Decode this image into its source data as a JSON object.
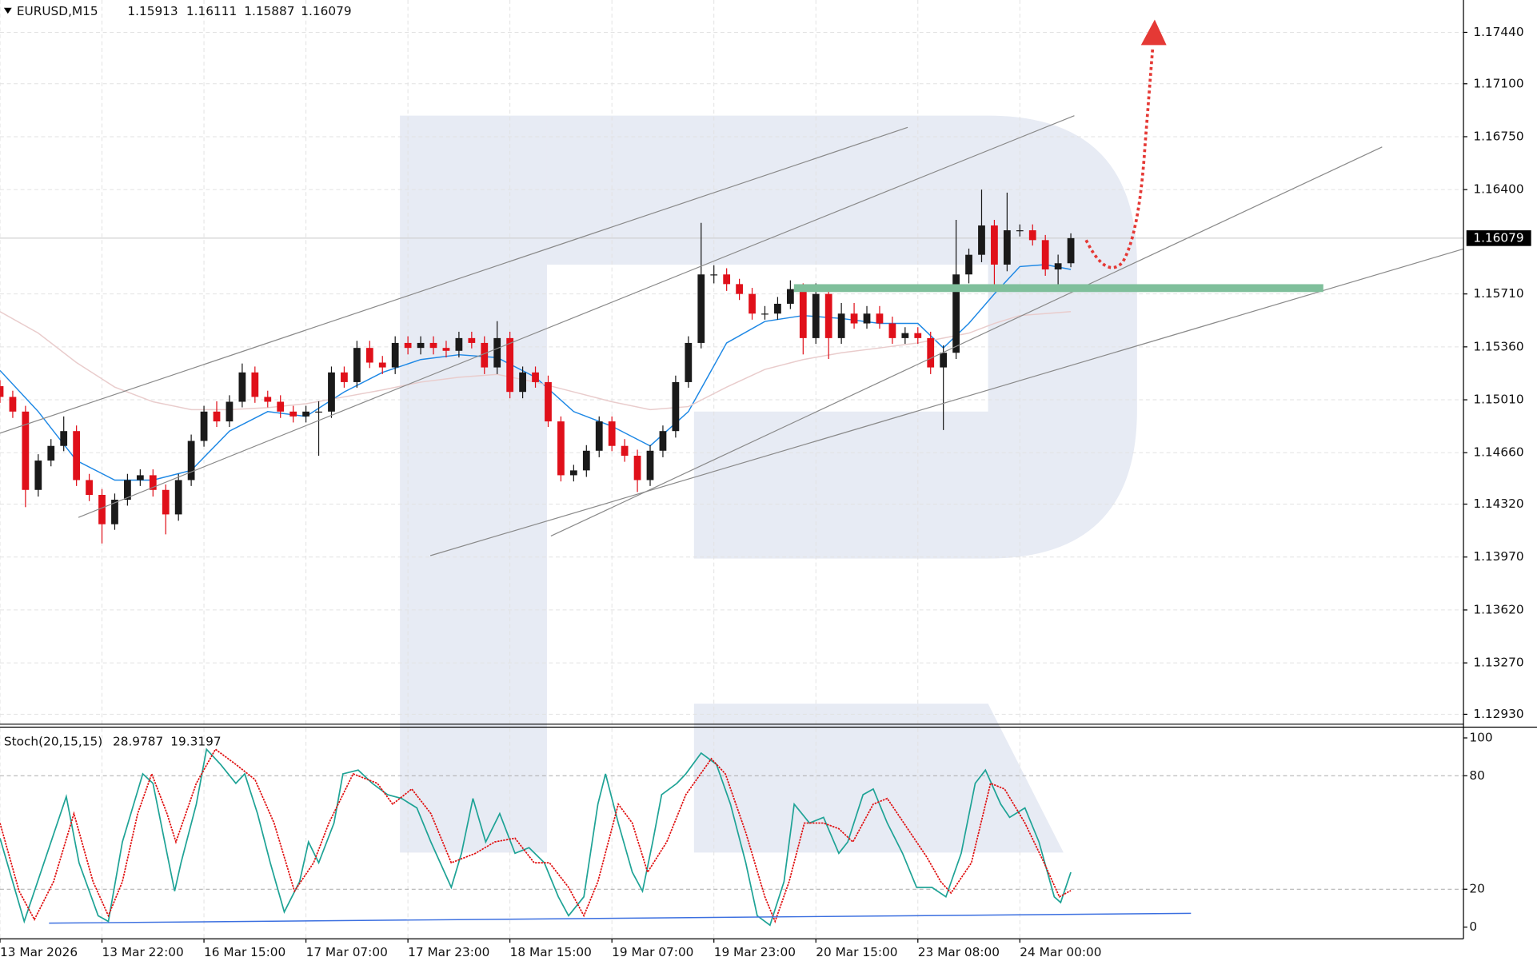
{
  "chart_data": [
    {
      "type": "candlestick",
      "symbol": "EURUSD,M15",
      "xlim": [
        0,
        114.8
      ],
      "ylim": [
        1.12858,
        1.17654
      ],
      "grid": true,
      "up_color": "#1a1a1a",
      "down_color": "#e0101a",
      "xticks": [
        {
          "value": 0,
          "label": "13 Mar 2026"
        },
        {
          "value": 8,
          "label": "13 Mar 22:00"
        },
        {
          "value": 16,
          "label": "16 Mar 15:00"
        },
        {
          "value": 24,
          "label": "17 Mar 07:00"
        },
        {
          "value": 32,
          "label": "17 Mar 23:00"
        },
        {
          "value": 40,
          "label": "18 Mar 15:00"
        },
        {
          "value": 48,
          "label": "19 Mar 07:00"
        },
        {
          "value": 56,
          "label": "19 Mar 23:00"
        },
        {
          "value": 64,
          "label": "20 Mar 15:00"
        },
        {
          "value": 72,
          "label": "23 Mar 08:00"
        },
        {
          "value": 80,
          "label": "24 Mar 00:00"
        }
      ],
      "yticks": [
        {
          "value": 1.1744,
          "label": "1.17440"
        },
        {
          "value": 1.171,
          "label": "1.17100"
        },
        {
          "value": 1.1675,
          "label": "1.16750"
        },
        {
          "value": 1.164,
          "label": "1.16400"
        },
        {
          "value": 1.1571,
          "label": "1.15710"
        },
        {
          "value": 1.1536,
          "label": "1.15360"
        },
        {
          "value": 1.1501,
          "label": "1.15010"
        },
        {
          "value": 1.1466,
          "label": "1.14660"
        },
        {
          "value": 1.1432,
          "label": "1.14320"
        },
        {
          "value": 1.1397,
          "label": "1.13970"
        },
        {
          "value": 1.1362,
          "label": "1.13620"
        },
        {
          "value": 1.1327,
          "label": "1.13270"
        },
        {
          "value": 1.1293,
          "label": "1.12930"
        }
      ],
      "open": [
        1.151,
        1.15029,
        1.14932,
        1.14414,
        1.14608,
        1.14705,
        1.14803,
        1.14479,
        1.14381,
        1.14187,
        1.14349,
        1.14479,
        1.14511,
        1.14414,
        1.14252,
        1.14479,
        1.14738,
        1.14932,
        1.14867,
        1.14997,
        1.15191,
        1.15029,
        1.14997,
        1.14932,
        1.149,
        1.14932,
        1.14932,
        1.15191,
        1.15127,
        1.15353,
        1.15256,
        1.15224,
        1.15386,
        1.15353,
        1.15386,
        1.15353,
        1.15334,
        1.15418,
        1.15386,
        1.15224,
        1.15418,
        1.15062,
        1.15191,
        1.15127,
        1.14867,
        1.14511,
        1.14543,
        1.14673,
        1.14867,
        1.14705,
        1.1464,
        1.14479,
        1.14673,
        1.14803,
        1.15127,
        1.15386,
        1.15839,
        1.15839,
        1.15775,
        1.1571,
        1.1558,
        1.1558,
        1.15645,
        1.15742,
        1.15418,
        1.1571,
        1.15418,
        1.1558,
        1.15515,
        1.1558,
        1.15515,
        1.15418,
        1.15451,
        1.15418,
        1.15224,
        1.15321,
        1.15839,
        1.15969,
        1.16163,
        1.15904,
        1.16131,
        1.16131,
        1.16066,
        1.15872,
        1.15913
      ],
      "high": [
        1.1514,
        1.1507,
        1.1497,
        1.1465,
        1.1475,
        1.149,
        1.1484,
        1.1452,
        1.1442,
        1.1439,
        1.1452,
        1.1455,
        1.1455,
        1.1445,
        1.1452,
        1.1478,
        1.1497,
        1.15,
        1.1504,
        1.1525,
        1.1523,
        1.1507,
        1.1504,
        1.1497,
        1.1497,
        1.15,
        1.1523,
        1.1523,
        1.154,
        1.154,
        1.153,
        1.1543,
        1.1543,
        1.1543,
        1.1543,
        1.154,
        1.1546,
        1.1546,
        1.1543,
        1.1553,
        1.1546,
        1.1523,
        1.1523,
        1.1517,
        1.149,
        1.1458,
        1.1471,
        1.149,
        1.149,
        1.1475,
        1.1468,
        1.1471,
        1.1484,
        1.1517,
        1.1543,
        1.1618,
        1.159,
        1.1588,
        1.1581,
        1.1575,
        1.1563,
        1.1569,
        1.158,
        1.1578,
        1.1578,
        1.1575,
        1.1565,
        1.1565,
        1.1563,
        1.1563,
        1.1556,
        1.1549,
        1.1549,
        1.1546,
        1.1537,
        1.162,
        1.1601,
        1.164,
        1.162,
        1.1638,
        1.1617,
        1.1617,
        1.161,
        1.1597,
        1.16111
      ],
      "low": [
        1.1499,
        1.1489,
        1.143,
        1.1437,
        1.1457,
        1.1467,
        1.1444,
        1.1434,
        1.1406,
        1.1415,
        1.1431,
        1.1444,
        1.1437,
        1.1412,
        1.1421,
        1.1444,
        1.147,
        1.1483,
        1.1483,
        1.1496,
        1.1499,
        1.1496,
        1.1489,
        1.1486,
        1.1486,
        1.1464,
        1.1489,
        1.1509,
        1.1509,
        1.1522,
        1.1518,
        1.1518,
        1.1531,
        1.1531,
        1.1531,
        1.1529,
        1.1529,
        1.1535,
        1.1518,
        1.1518,
        1.1502,
        1.1502,
        1.1509,
        1.1483,
        1.1447,
        1.1447,
        1.145,
        1.1463,
        1.1467,
        1.146,
        1.144,
        1.1444,
        1.1463,
        1.1476,
        1.1509,
        1.1535,
        1.1578,
        1.1573,
        1.1567,
        1.1554,
        1.1554,
        1.1554,
        1.1561,
        1.1531,
        1.1538,
        1.1528,
        1.1538,
        1.1548,
        1.1548,
        1.1548,
        1.1538,
        1.1538,
        1.1538,
        1.1518,
        1.1481,
        1.1528,
        1.1578,
        1.1592,
        1.1576,
        1.1586,
        1.1609,
        1.1603,
        1.1583,
        1.1576,
        1.15887
      ],
      "close": [
        1.15029,
        1.14932,
        1.14414,
        1.14608,
        1.14705,
        1.14803,
        1.14479,
        1.14381,
        1.14187,
        1.14349,
        1.14479,
        1.14511,
        1.14414,
        1.14252,
        1.14479,
        1.14738,
        1.14932,
        1.14867,
        1.14997,
        1.15191,
        1.15029,
        1.14997,
        1.14932,
        1.149,
        1.14932,
        1.14932,
        1.15191,
        1.15127,
        1.15353,
        1.15256,
        1.15224,
        1.15386,
        1.15353,
        1.15386,
        1.15353,
        1.15334,
        1.15418,
        1.15386,
        1.15224,
        1.15418,
        1.15062,
        1.15191,
        1.15127,
        1.14867,
        1.14511,
        1.14543,
        1.14673,
        1.14867,
        1.14705,
        1.1464,
        1.14479,
        1.14673,
        1.14803,
        1.15127,
        1.15386,
        1.15839,
        1.15839,
        1.15775,
        1.1571,
        1.1558,
        1.1558,
        1.15645,
        1.15742,
        1.15418,
        1.1571,
        1.15418,
        1.1558,
        1.15515,
        1.1558,
        1.15515,
        1.15418,
        1.15451,
        1.15418,
        1.15224,
        1.15321,
        1.15839,
        1.15969,
        1.16163,
        1.15904,
        1.16131,
        1.16131,
        1.16066,
        1.15872,
        1.15913,
        1.16079
      ],
      "lines": [
        {
          "color": "#1e88e5",
          "x": [
            0,
            3,
            6,
            9,
            12,
            15,
            18,
            21,
            24,
            27,
            30,
            33,
            36,
            39,
            42,
            45,
            48,
            51,
            54,
            57,
            60,
            63,
            66,
            69,
            72,
            74,
            76,
            78,
            80,
            82,
            84
          ],
          "values": [
            1.15204,
            1.14932,
            1.14608,
            1.14479,
            1.14479,
            1.14543,
            1.14803,
            1.14932,
            1.149,
            1.15062,
            1.15191,
            1.15276,
            1.15308,
            1.15289,
            1.15159,
            1.14932,
            1.14835,
            1.14705,
            1.14932,
            1.15386,
            1.15528,
            1.15567,
            1.15548,
            1.15515,
            1.15515,
            1.15353,
            1.15515,
            1.1571,
            1.15891,
            1.15904,
            1.15872
          ]
        },
        {
          "color": "#e9cccc",
          "x": [
            0,
            3,
            6,
            9,
            12,
            15,
            18,
            21,
            24,
            27,
            30,
            33,
            36,
            39,
            42,
            45,
            48,
            51,
            54,
            57,
            60,
            63,
            66,
            69,
            72,
            74,
            76,
            78,
            80,
            82,
            84
          ],
          "values": [
            1.15593,
            1.15451,
            1.15256,
            1.15094,
            1.14997,
            1.14945,
            1.14945,
            1.14958,
            1.14984,
            1.15029,
            1.15075,
            1.15127,
            1.15159,
            1.15178,
            1.15127,
            1.15062,
            1.14997,
            1.14945,
            1.14965,
            1.15094,
            1.15211,
            1.15276,
            1.15321,
            1.15353,
            1.15386,
            1.15418,
            1.15451,
            1.15515,
            1.15567,
            1.1558,
            1.15593
          ]
        }
      ]
    },
    {
      "type": "stochastic",
      "title": "Stoch(20,15,15)",
      "xlim": [
        0,
        114.8
      ],
      "ylim": [
        -6.2,
        105.7
      ],
      "yticks": [
        0,
        20,
        80,
        100
      ],
      "levels": [
        20,
        80
      ],
      "series": [
        {
          "color": "#1fa396",
          "style": "solid",
          "x": [
            0,
            1.9,
            5.2,
            6.2,
            7.7,
            8.5,
            9.6,
            11.2,
            12,
            13.1,
            13.7,
            14.2,
            15.4,
            16.2,
            17.3,
            18.5,
            19.2,
            20.2,
            21.2,
            22.3,
            23.5,
            24.2,
            25,
            26.2,
            26.9,
            28.1,
            29.2,
            30.4,
            31.5,
            32.7,
            33.8,
            35.4,
            36.2,
            37.1,
            38.1,
            39.2,
            40.4,
            41.5,
            42.7,
            43.8,
            44.6,
            45.8,
            46.9,
            47.5,
            48.5,
            49.6,
            50.4,
            51.2,
            51.9,
            53.1,
            53.8,
            55,
            56.2,
            57.3,
            58.5,
            59.4,
            60.4,
            61.5,
            62.3,
            63.5,
            64.6,
            65.8,
            66.5,
            67.7,
            68.5,
            69.6,
            70.8,
            71.9,
            73.1,
            74.2,
            75.4,
            76.5,
            77.3,
            78.5,
            79.2,
            80.4,
            81.5,
            82.7,
            83.2,
            84
          ],
          "values": [
            47,
            3,
            69,
            34,
            6,
            3,
            45,
            81,
            76,
            39,
            19,
            34,
            65,
            94,
            86,
            76,
            81,
            60,
            34,
            8,
            24,
            45,
            34,
            55,
            81,
            83,
            76,
            70,
            68,
            63,
            45,
            21,
            39,
            68,
            45,
            60,
            39,
            42,
            34,
            16,
            6,
            16,
            65,
            81,
            55,
            29,
            19,
            45,
            70,
            76,
            81,
            92,
            86,
            65,
            34,
            6,
            1,
            24,
            65,
            55,
            58,
            39,
            45,
            70,
            73,
            55,
            39,
            21,
            21,
            16,
            39,
            76,
            83,
            65,
            58,
            63,
            45,
            16,
            13,
            28.9787
          ]
        },
        {
          "color": "#e01010",
          "style": "dotted",
          "x": [
            0,
            1.5,
            2.7,
            4.2,
            5.8,
            7.3,
            8.5,
            9.6,
            10.8,
            11.9,
            13.1,
            13.8,
            15.4,
            16.9,
            18.5,
            20,
            21.5,
            23.1,
            24.6,
            25.8,
            27.7,
            29.6,
            30.8,
            32.3,
            33.8,
            35.4,
            37.3,
            38.8,
            40.4,
            41.9,
            43.1,
            44.6,
            45.8,
            46.9,
            48.5,
            49.6,
            50.8,
            52.3,
            53.8,
            55.8,
            56.9,
            58.5,
            60,
            60.8,
            61.9,
            63.1,
            64.6,
            65.8,
            66.9,
            68.5,
            69.6,
            71.2,
            72.7,
            73.8,
            74.6,
            76.2,
            77.7,
            78.8,
            80.4,
            81.9,
            83.1,
            84
          ],
          "values": [
            55,
            19,
            4,
            24,
            60,
            24,
            6,
            24,
            60,
            81,
            60,
            45,
            76,
            94,
            86,
            78,
            55,
            19,
            34,
            55,
            81,
            76,
            65,
            73,
            60,
            34,
            39,
            45,
            47,
            34,
            34,
            21,
            6,
            24,
            65,
            55,
            29,
            45,
            70,
            89,
            81,
            50,
            16,
            3,
            24,
            55,
            55,
            52,
            45,
            65,
            68,
            52,
            37,
            24,
            18,
            34,
            76,
            73,
            55,
            34,
            16,
            19.3197
          ]
        }
      ]
    }
  ]
}
